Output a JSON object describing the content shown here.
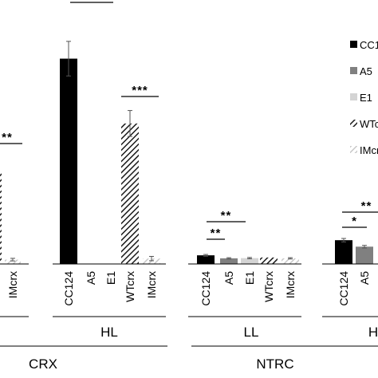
{
  "chart_data": {
    "type": "bar",
    "title": "",
    "xlabel": "",
    "ylabel": "",
    "ylim": [
      0,
      100
    ],
    "grid": false,
    "legend_position": "right",
    "groups": [
      {
        "name": "CRX",
        "subgroups": [
          {
            "name": "",
            "bars": [
              {
                "category": "WTcrx",
                "value": 42,
                "error": 0
              },
              {
                "category": "IMcrx",
                "value": 2,
                "error": 0.6
              }
            ],
            "sig": [
              {
                "label": "**"
              }
            ]
          }
        ]
      },
      {
        "name": "",
        "subgroups": [
          {
            "name": "HL",
            "bars": [
              {
                "category": "CC124",
                "value": 95,
                "error": 8
              },
              {
                "category": "A5",
                "value": 0,
                "error": 0
              },
              {
                "category": "E1",
                "value": 0,
                "error": 0
              },
              {
                "category": "WTcrx",
                "value": 65,
                "error": 6
              },
              {
                "category": "IMcrx",
                "value": 2.5,
                "error": 1
              }
            ],
            "sig": [
              {
                "label": "***"
              },
              {
                "label": "***"
              }
            ]
          }
        ]
      },
      {
        "name": "NTRC",
        "subgroups": [
          {
            "name": "LL",
            "bars": [
              {
                "category": "CC124",
                "value": 4,
                "error": 0.4
              },
              {
                "category": "A5",
                "value": 2.6,
                "error": 0.3
              },
              {
                "category": "E1",
                "value": 2.7,
                "error": 0.3
              },
              {
                "category": "WTcrx",
                "value": 3,
                "error": 0
              },
              {
                "category": "IMcrx",
                "value": 2.6,
                "error": 0.3
              }
            ],
            "sig": [
              {
                "label": "**"
              },
              {
                "label": "**"
              }
            ]
          },
          {
            "name": "H",
            "bars": [
              {
                "category": "CC124",
                "value": 11,
                "error": 0.8
              },
              {
                "category": "A5",
                "value": 8,
                "error": 0.6
              }
            ],
            "sig": [
              {
                "label": "**"
              },
              {
                "label": "*"
              }
            ]
          }
        ]
      }
    ],
    "legend": [
      {
        "label": "CC124",
        "style": "black"
      },
      {
        "label": "A5",
        "style": "darkgray"
      },
      {
        "label": "E1",
        "style": "lightgray"
      },
      {
        "label": "WTcrx",
        "style": "hatch"
      },
      {
        "label": "IMcrx",
        "style": "lighthatch"
      }
    ],
    "colors": {
      "black": "#000000",
      "darkgray": "#808080",
      "lightgray": "#d4d4d4",
      "hatch": "#1a1a1a",
      "lighthatch": "#c8c8c8"
    }
  }
}
